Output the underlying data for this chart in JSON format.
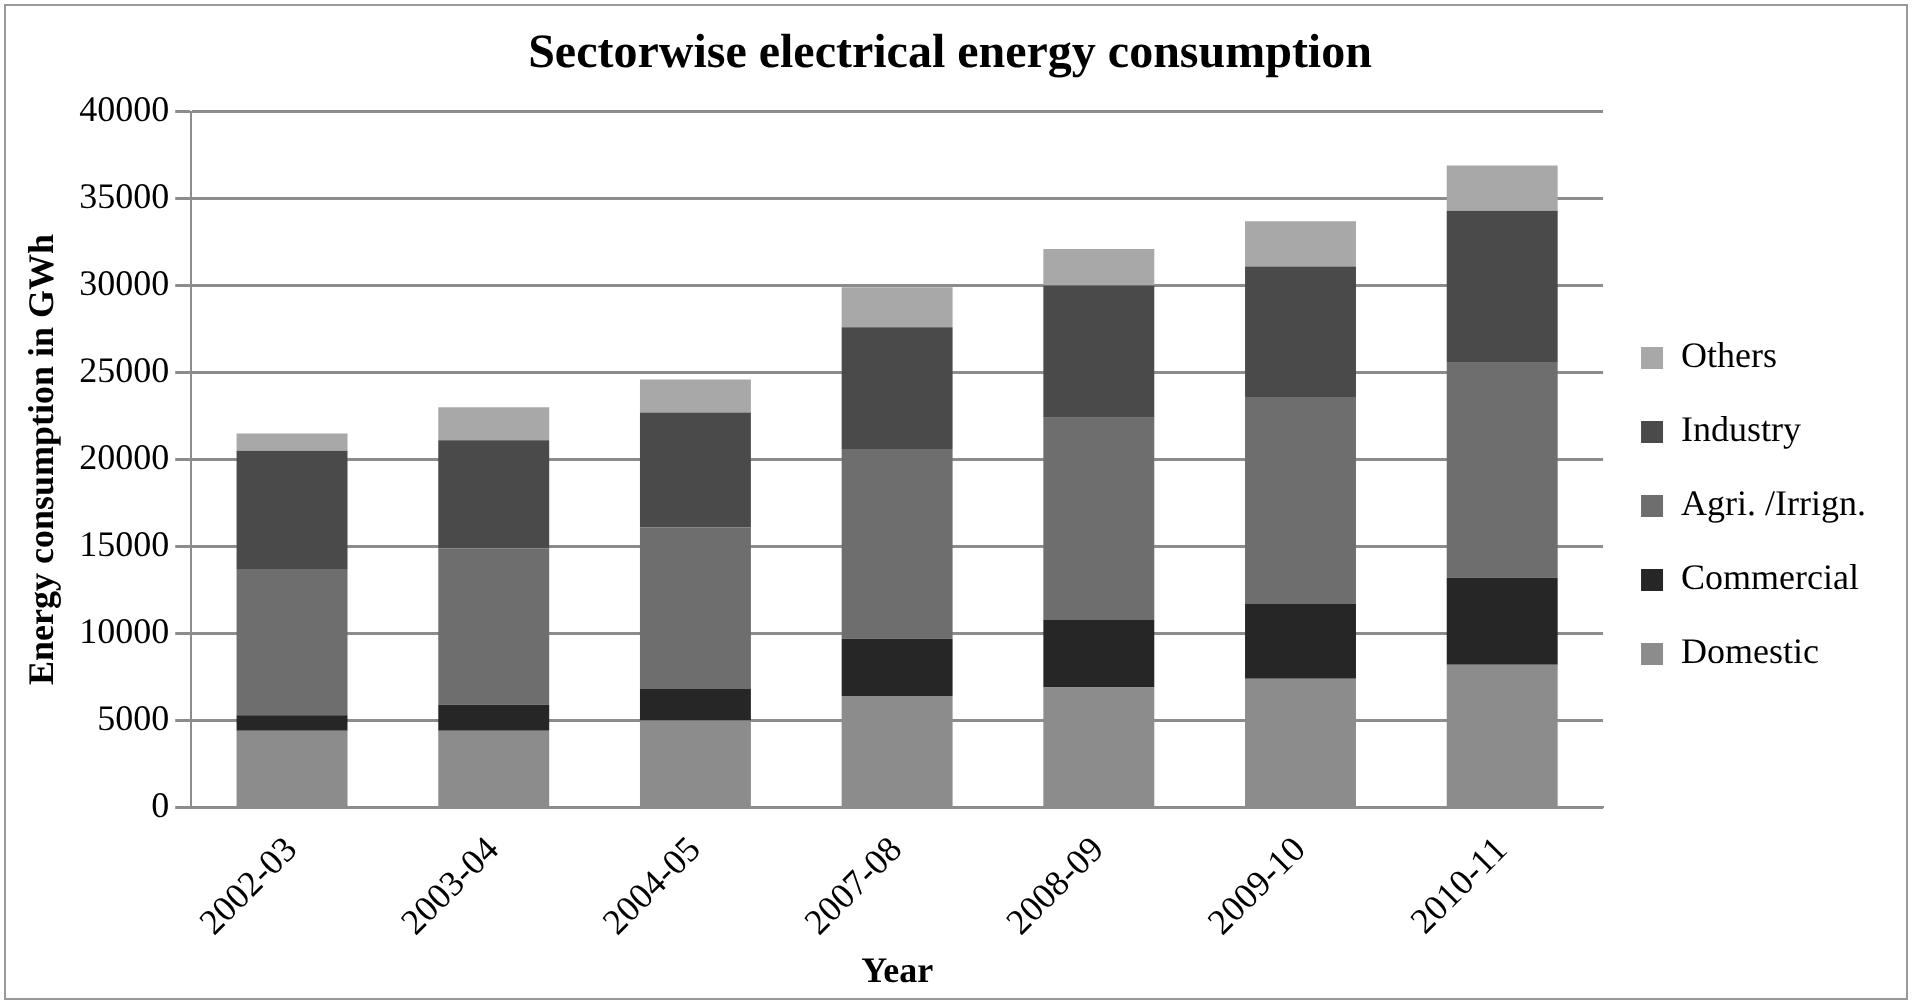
{
  "chart_data": {
    "type": "bar",
    "title": "Sectorwise electrical energy consumption",
    "xlabel": "Year",
    "ylabel": "Energy consumption in GWh",
    "categories": [
      "2002-03",
      "2003-04",
      "2004-05",
      "2007-08",
      "2008-09",
      "2009-10",
      "2010-11"
    ],
    "stacked": true,
    "ylim": [
      0,
      40000
    ],
    "yticks": [
      0,
      5000,
      10000,
      15000,
      20000,
      25000,
      30000,
      35000,
      40000
    ],
    "grid": "y",
    "legend": "right",
    "series": [
      {
        "name": "Domestic",
        "color": "#8c8c8c",
        "values": [
          4400,
          4400,
          5000,
          6400,
          6900,
          7400,
          8200
        ]
      },
      {
        "name": "Commercial",
        "color": "#262626",
        "values": [
          900,
          1500,
          1800,
          3300,
          3900,
          4300,
          5000
        ]
      },
      {
        "name": "Agri. /Irrign.",
        "color": "#6e6e6e",
        "values": [
          8400,
          9000,
          9300,
          10900,
          11600,
          11900,
          12400
        ]
      },
      {
        "name": "Industry",
        "color": "#4a4a4a",
        "values": [
          6800,
          6200,
          6600,
          7000,
          7600,
          7500,
          8700
        ]
      },
      {
        "name": "Others",
        "color": "#a8a8a8",
        "values": [
          1000,
          1900,
          1900,
          2300,
          2100,
          2600,
          2600
        ]
      }
    ]
  }
}
